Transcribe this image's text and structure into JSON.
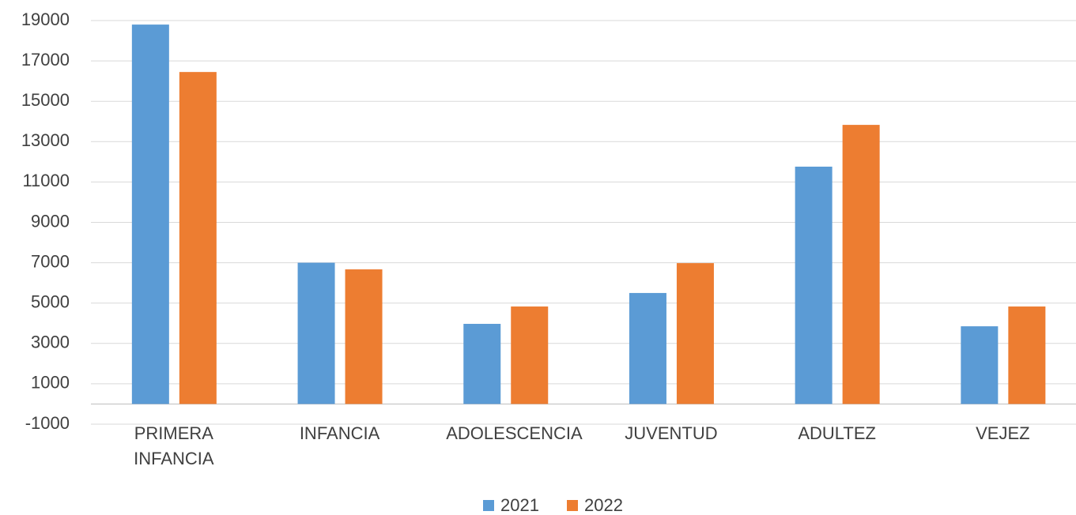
{
  "chart_data": {
    "type": "bar",
    "categories": [
      "PRIMERA INFANCIA",
      "INFANCIA",
      "ADOLESCENCIA",
      "JUVENTUD",
      "ADULTEZ",
      "VEJEZ"
    ],
    "series": [
      {
        "name": "2021",
        "color": "#5b9bd5",
        "values": [
          18800,
          7000,
          3970,
          5500,
          11760,
          3850
        ]
      },
      {
        "name": "2022",
        "color": "#ed7d31",
        "values": [
          16450,
          6670,
          4830,
          6980,
          13830,
          4830
        ]
      }
    ],
    "ylim": [
      -1000,
      19000
    ],
    "yticks": [
      -1000,
      1000,
      3000,
      5000,
      7000,
      9000,
      11000,
      13000,
      15000,
      17000,
      19000
    ],
    "grid": true,
    "legend": "bottom"
  }
}
